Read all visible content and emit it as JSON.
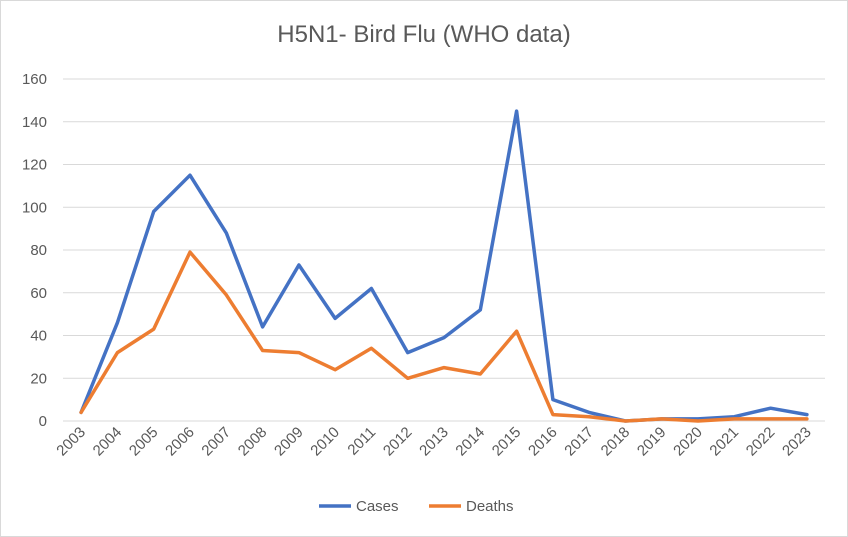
{
  "chart_data": {
    "type": "line",
    "title": "H5N1- Bird Flu (WHO data)",
    "xlabel": "",
    "ylabel": "",
    "categories": [
      "2003",
      "2004",
      "2005",
      "2006",
      "2007",
      "2008",
      "2009",
      "2010",
      "2011",
      "2012",
      "2013",
      "2014",
      "2015",
      "2016",
      "2017",
      "2018",
      "2019",
      "2020",
      "2021",
      "2022",
      "2023"
    ],
    "series": [
      {
        "name": "Cases",
        "color": "#4472c4",
        "values": [
          4,
          46,
          98,
          115,
          88,
          44,
          73,
          48,
          62,
          32,
          39,
          52,
          145,
          10,
          4,
          0,
          1,
          1,
          2,
          6,
          3
        ]
      },
      {
        "name": "Deaths",
        "color": "#ed7d31",
        "values": [
          4,
          32,
          43,
          79,
          59,
          33,
          32,
          24,
          34,
          20,
          25,
          22,
          42,
          3,
          2,
          0,
          1,
          0,
          1,
          1,
          1
        ]
      }
    ],
    "ylim": [
      0,
      160
    ],
    "yticks": [
      0,
      20,
      40,
      60,
      80,
      100,
      120,
      140,
      160
    ],
    "grid": true,
    "legend": "bottom-center"
  }
}
